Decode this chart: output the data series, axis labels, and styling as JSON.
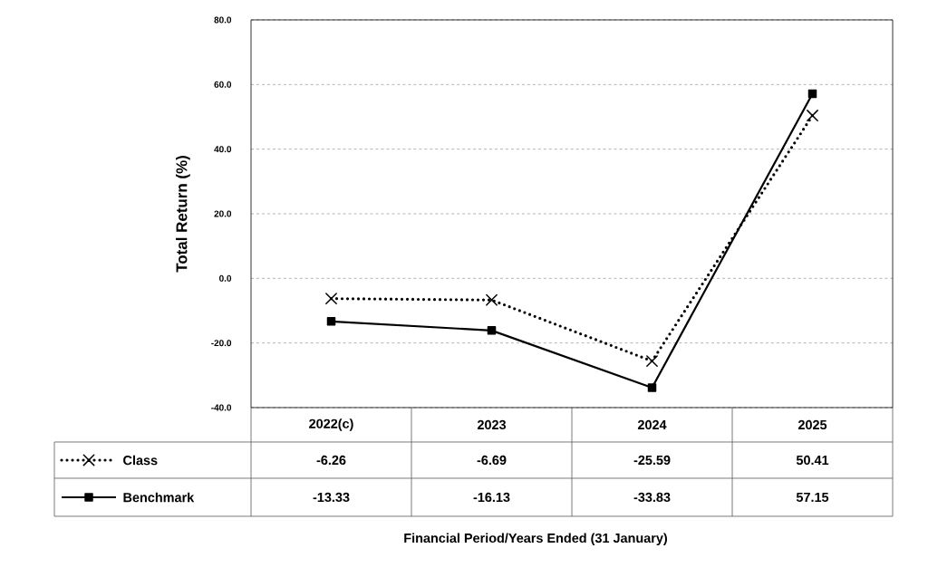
{
  "chart_data": {
    "type": "line",
    "ylabel": "Total Return (%)",
    "annotations": [
      "Financial  Period/Years Ended (31 January)"
    ],
    "categories": [
      "2022(c)",
      "2023",
      "2024",
      "2025"
    ],
    "series": [
      {
        "name": "Class",
        "color": "#000000",
        "values": [
          -6.26,
          -6.69,
          -25.59,
          50.41
        ],
        "marker": "cross",
        "line_style": "dotted"
      },
      {
        "name": "Benchmark",
        "color": "#000000",
        "values": [
          -13.33,
          -16.13,
          -33.83,
          57.15
        ],
        "marker": "square",
        "line_style": "solid"
      }
    ],
    "ylim": [
      -40,
      80
    ],
    "yticks": [
      {
        "value": -40,
        "label": "-40.0"
      },
      {
        "value": -20,
        "label": "-20.0"
      },
      {
        "value": 0,
        "label": "0.0"
      },
      {
        "value": 20,
        "label": "20.0"
      },
      {
        "value": 40,
        "label": "40.0"
      },
      {
        "value": 60,
        "label": "60.0"
      },
      {
        "value": 80,
        "label": "80.0"
      }
    ],
    "grid": "y",
    "legend": "bottom",
    "data_labels": true
  }
}
